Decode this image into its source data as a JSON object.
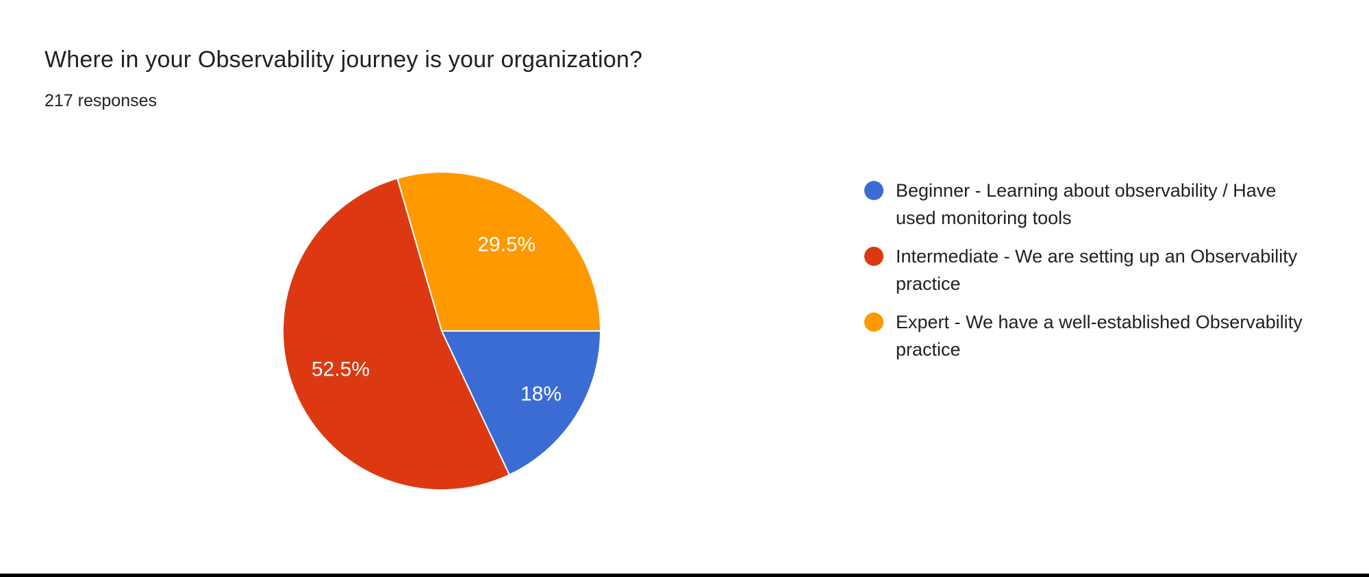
{
  "chart_data": {
    "type": "pie",
    "title": "Where in your Observability journey is your organization?",
    "subtitle": "217 responses",
    "legend_position": "right",
    "start_angle_deg": 90,
    "slices": [
      {
        "label": "Beginner - Learning about observability / Have used monitoring tools",
        "value_pct": 18,
        "display": "18%",
        "color": "#3B6CD4"
      },
      {
        "label": "Intermediate - We are setting up an Observability practice",
        "value_pct": 52.5,
        "display": "52.5%",
        "color": "#DC3912"
      },
      {
        "label": "Expert - We have a well-established Observability practice",
        "value_pct": 29.5,
        "display": "29.5%",
        "color": "#FF9900"
      }
    ],
    "colors": {
      "text": "#212121",
      "slice_label_text": "#ffffff",
      "slice_separator": "#ffffff",
      "background": "#ffffff",
      "window_border": "#000000"
    }
  }
}
